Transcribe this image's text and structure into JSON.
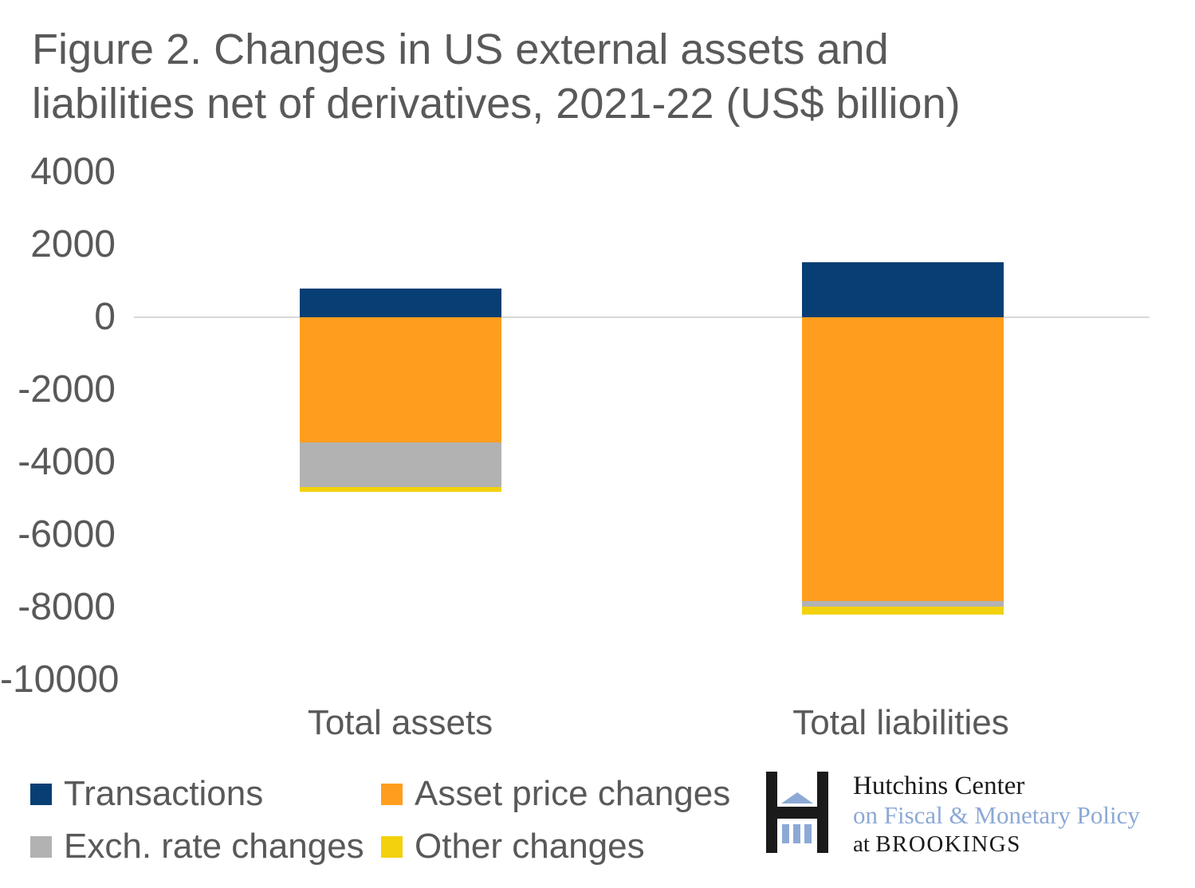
{
  "figure": {
    "title_line1": "Figure 2. Changes in US external assets and",
    "title_line2": "liabilities net of derivatives, 2021-22 (US$ billion)"
  },
  "chart_data": {
    "type": "bar",
    "stacked": true,
    "title": "Figure 2. Changes in US external assets and liabilities net of derivatives, 2021-22 (US$ billion)",
    "unit": "US$ billion",
    "categories": [
      "Total assets",
      "Total liabilities"
    ],
    "series": [
      {
        "name": "Transactions",
        "color": "#073E73",
        "values": [
          800,
          1520
        ]
      },
      {
        "name": "Asset price changes",
        "color": "#FF9E1E",
        "values": [
          -3450,
          -7830
        ]
      },
      {
        "name": "Exch. rate changes",
        "color": "#B2B2B2",
        "values": [
          -1230,
          -150
        ]
      },
      {
        "name": "Other changes",
        "color": "#F3D10C",
        "values": [
          -140,
          -220
        ]
      }
    ],
    "yticks": [
      4000,
      2000,
      0,
      -2000,
      -4000,
      -6000,
      -8000,
      -10000
    ],
    "ylim": [
      -10000,
      4000
    ],
    "grid": "zero-baseline-only",
    "gridline_color": "#D9D9D9",
    "text_color": "#595959",
    "legend_position": "bottom-left"
  },
  "logo": {
    "name": "Hutchins Center",
    "line2": "on Fiscal & Monetary Policy",
    "line3_prefix": "at",
    "line3_org": "BROOKINGS",
    "icon": "hutchins-h-building-icon",
    "icon_black": "#1A1A1A",
    "icon_blue": "#8CA9D6"
  }
}
